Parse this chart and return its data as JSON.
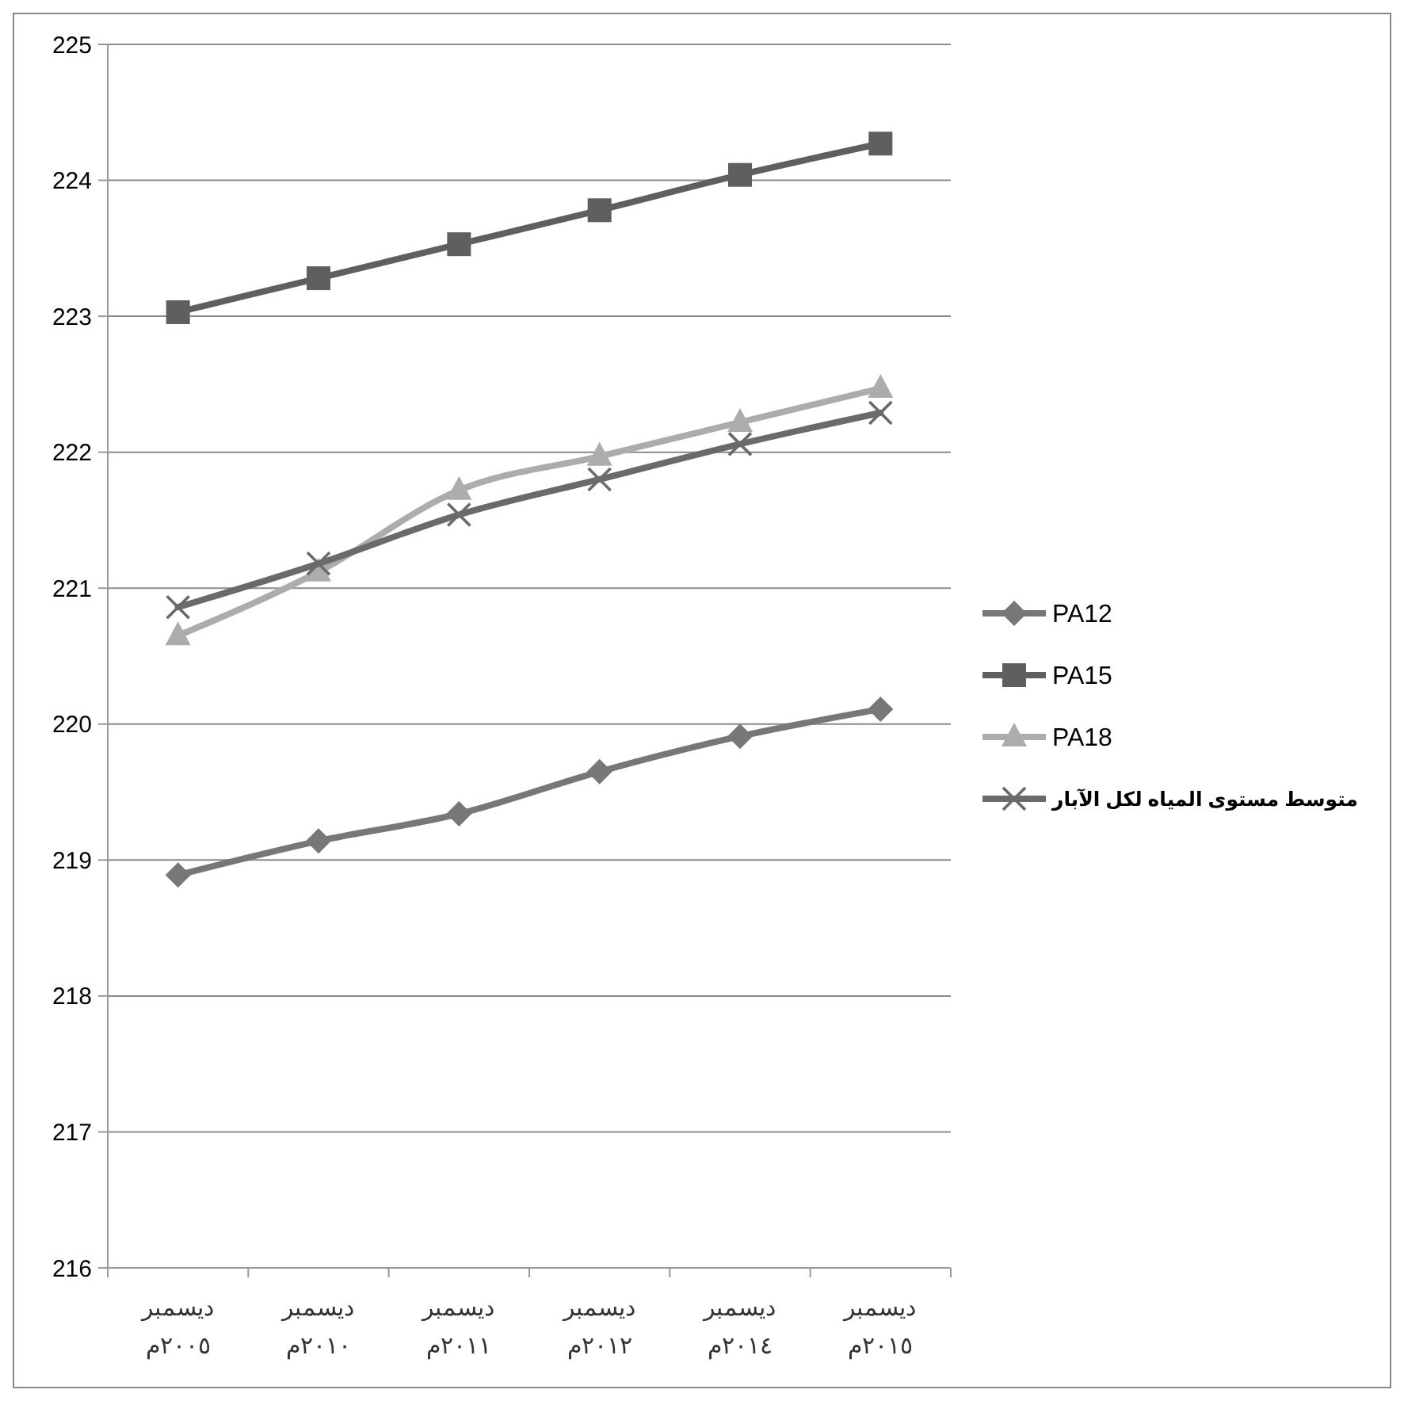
{
  "chart_data": {
    "type": "line",
    "categories": [
      "ديسمبر\n٢٠٠٥م",
      "ديسمبر\n٢٠١٠م",
      "ديسمبر\n٢٠١١م",
      "ديسمبر\n٢٠١٢م",
      "ديسمبر\n٢٠١٤م",
      "ديسمبر\n٢٠١٥م"
    ],
    "series": [
      {
        "name": "PA12",
        "color": "#777777",
        "marker": "diamond",
        "values": [
          218.89,
          219.14,
          219.34,
          219.65,
          219.91,
          220.11
        ]
      },
      {
        "name": "PA15",
        "color": "#5f5f5f",
        "marker": "square",
        "values": [
          223.03,
          223.28,
          223.53,
          223.78,
          224.04,
          224.27
        ]
      },
      {
        "name": "PA18",
        "color": "#acacac",
        "marker": "triangle",
        "values": [
          220.65,
          221.12,
          221.72,
          221.97,
          222.22,
          222.47
        ]
      },
      {
        "name": "متوسط مستوى المياه لكل الآبار",
        "color": "#6a6a6a",
        "marker": "cross",
        "values": [
          220.86,
          221.18,
          221.54,
          221.8,
          222.06,
          222.29
        ]
      }
    ],
    "ylim": [
      216,
      225
    ],
    "yticks": [
      216,
      217,
      218,
      219,
      220,
      221,
      222,
      223,
      224,
      225
    ],
    "grid": "y",
    "legend": "right"
  }
}
